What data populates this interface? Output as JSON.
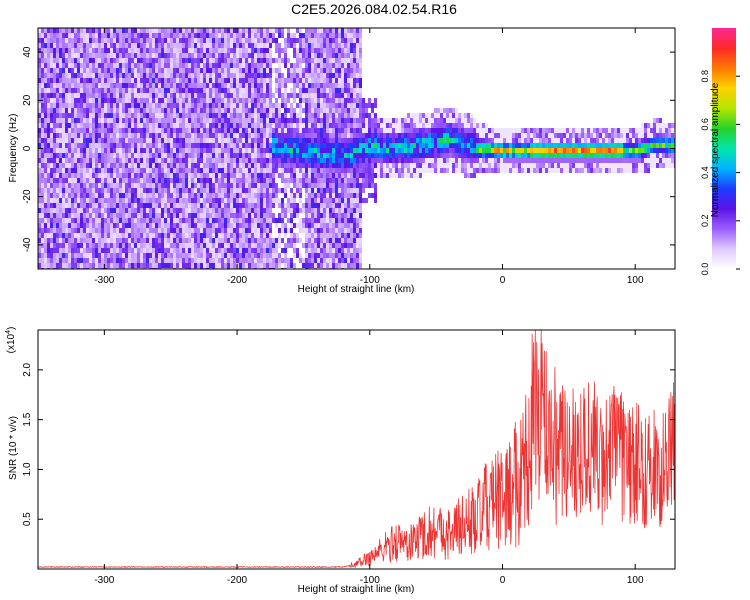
{
  "title": "C2E5.2026.084.02.54.R16",
  "chart_data": [
    {
      "type": "heatmap",
      "xlabel": "Height of straight line (km)",
      "ylabel": "Frequency (Hz)",
      "xlim": [
        -350,
        130
      ],
      "ylim": [
        -50,
        50
      ],
      "xticks": [
        -300,
        -200,
        -100,
        0,
        100
      ],
      "yticks": [
        -40,
        -20,
        0,
        20,
        40
      ],
      "colorbar": {
        "label": "Normalized spectral amplitude",
        "range": [
          0,
          1
        ],
        "ticks": [
          "0.0",
          "0.2",
          "0.4",
          "0.6",
          "0.8"
        ],
        "colors": [
          "#ffffff",
          "#e0c8ff",
          "#9b5cff",
          "#5a14e6",
          "#1e3cff",
          "#00b4ff",
          "#00e6aa",
          "#28d228",
          "#b4e600",
          "#ffd200",
          "#ff7800",
          "#ff2828",
          "#ff2896"
        ]
      },
      "noise_region_x": [
        -350,
        -108
      ],
      "signal_track": [
        {
          "x": -170,
          "y": 1
        },
        {
          "x": -150,
          "y": 0
        },
        {
          "x": -120,
          "y": -2
        },
        {
          "x": -100,
          "y": 2
        },
        {
          "x": -80,
          "y": 1
        },
        {
          "x": -60,
          "y": 3
        },
        {
          "x": -40,
          "y": 5
        },
        {
          "x": -20,
          "y": 1
        },
        {
          "x": 0,
          "y": 0
        },
        {
          "x": 20,
          "y": 0
        },
        {
          "x": 40,
          "y": 0
        },
        {
          "x": 60,
          "y": 0
        },
        {
          "x": 80,
          "y": 0
        },
        {
          "x": 100,
          "y": 0
        },
        {
          "x": 115,
          "y": 3
        },
        {
          "x": 130,
          "y": 2
        }
      ]
    },
    {
      "type": "line",
      "xlabel": "Height of straight line (km)",
      "ylabel": "SNR (10 * v/v)",
      "exponent_label": "(x10",
      "exponent_power": "4",
      "exponent_close": ")",
      "xlim": [
        -350,
        130
      ],
      "ylim": [
        0,
        2.4
      ],
      "xticks": [
        -300,
        -200,
        -100,
        0,
        100
      ],
      "yticks": [
        "0.5",
        "1.0",
        "1.5",
        "2.0"
      ],
      "line_color": "#ee3333",
      "series": [
        {
          "x": [
            -350,
            -300,
            -250,
            -200,
            -150,
            -120,
            -110,
            -100,
            -90,
            -80,
            -70,
            -60,
            -50,
            -40,
            -30,
            -20,
            -10,
            0,
            10,
            20,
            25,
            30,
            35,
            40,
            50,
            60,
            70,
            75,
            80,
            90,
            100,
            110,
            120,
            130
          ],
          "values": [
            0.02,
            0.02,
            0.02,
            0.02,
            0.02,
            0.02,
            0.05,
            0.12,
            0.2,
            0.28,
            0.25,
            0.35,
            0.4,
            0.35,
            0.45,
            0.5,
            0.65,
            0.7,
            0.85,
            1.1,
            1.7,
            1.6,
            1.3,
            1.1,
            1.2,
            1.25,
            1.2,
            1.0,
            1.3,
            1.1,
            1.05,
            1.0,
            1.0,
            1.2
          ]
        }
      ]
    }
  ]
}
